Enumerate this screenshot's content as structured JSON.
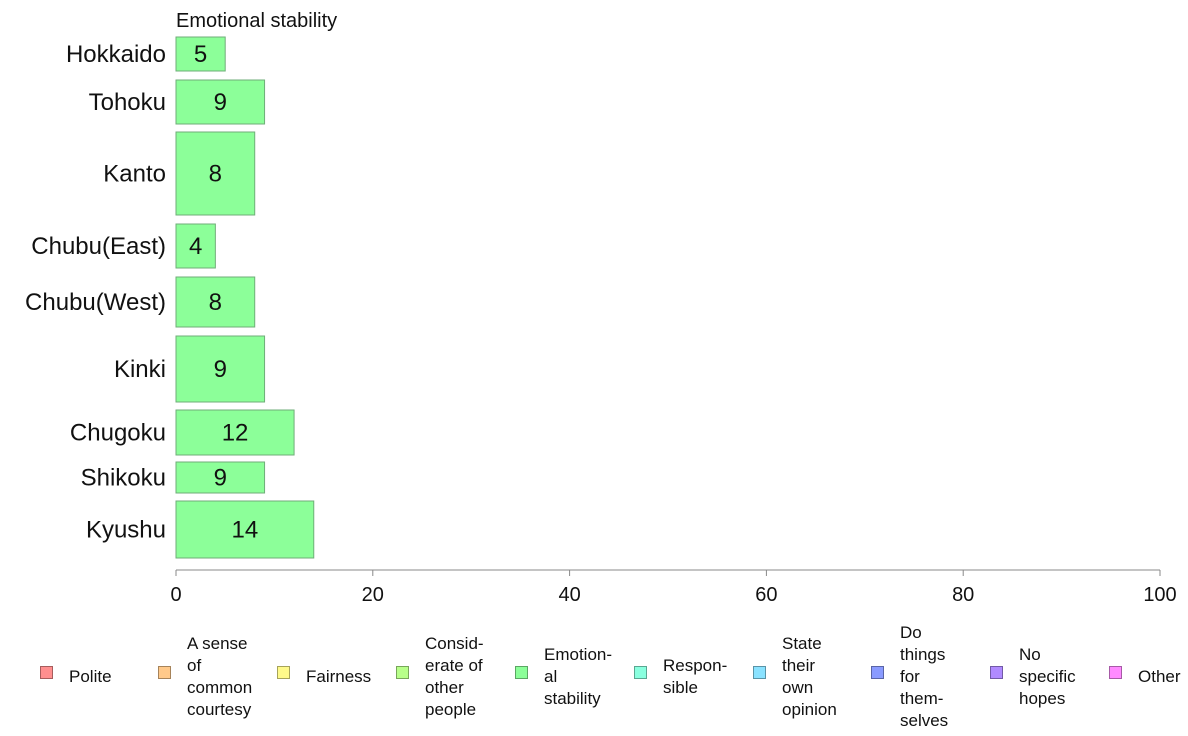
{
  "chart_data": {
    "type": "bar",
    "orientation": "horizontal",
    "title": "Emotional stability",
    "categories": [
      "Hokkaido",
      "Tohoku",
      "Kanto",
      "Chubu(East)",
      "Chubu(West)",
      "Kinki",
      "Chugoku",
      "Shikoku",
      "Kyushu"
    ],
    "values": [
      5,
      9,
      8,
      4,
      8,
      9,
      12,
      9,
      14
    ],
    "value_labels": [
      "5",
      "9",
      "8",
      "4",
      "8",
      "9",
      "12",
      "9",
      "14"
    ],
    "bar_color": "#8cff99",
    "xlim": [
      0,
      100
    ],
    "xticks": [
      "0",
      "20",
      "40",
      "60",
      "80",
      "100"
    ],
    "grid": false,
    "legend_position": "bottom",
    "legend": [
      {
        "label": "Polite",
        "color": "#ff8f8f"
      },
      {
        "label": "A sense\nof\ncommon\ncourtesy",
        "color": "#ffc98a"
      },
      {
        "label": "Fairness",
        "color": "#fffa8a"
      },
      {
        "label": "Consid-\nerate of\nother\npeople",
        "color": "#b8ff8a"
      },
      {
        "label": "Emotion-\nal\nstability",
        "color": "#8cff99"
      },
      {
        "label": "Respon-\nsible",
        "color": "#8affdf"
      },
      {
        "label": "State\ntheir\nown\nopinion",
        "color": "#8ae2ff"
      },
      {
        "label": "Do\nthings\nfor\nthem-\nselves",
        "color": "#8a9bff"
      },
      {
        "label": "No\nspecific\nhopes",
        "color": "#b08aff"
      },
      {
        "label": "Other",
        "color": "#ff8aff"
      }
    ]
  }
}
